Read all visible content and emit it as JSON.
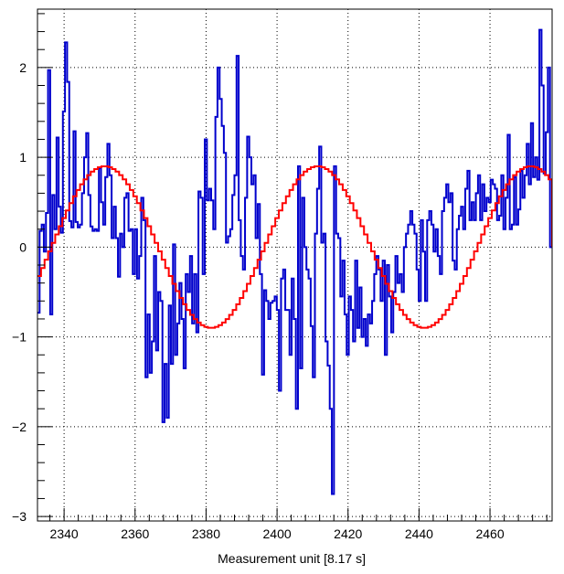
{
  "chart_data": {
    "type": "line",
    "title": "",
    "xlabel": "Measurement unit [8.17 s]",
    "ylabel": "",
    "xlim": [
      2332.5,
      2477.5
    ],
    "ylim": [
      -3.05,
      2.65
    ],
    "grid": true,
    "x_ticks": [
      {
        "value": 2340,
        "label": "2340"
      },
      {
        "value": 2360,
        "label": "2360"
      },
      {
        "value": 2380,
        "label": "2380"
      },
      {
        "value": 2400,
        "label": "2400"
      },
      {
        "value": 2420,
        "label": "2420"
      },
      {
        "value": 2440,
        "label": "2440"
      },
      {
        "value": 2460,
        "label": "2460"
      }
    ],
    "y_ticks": [
      {
        "value": -3,
        "label": "−3"
      },
      {
        "value": -2,
        "label": "−2"
      },
      {
        "value": -1,
        "label": "−1"
      },
      {
        "value": 0,
        "label": "0"
      },
      {
        "value": 1,
        "label": "1"
      },
      {
        "value": 2,
        "label": "2"
      }
    ],
    "bin_start": 2332.5,
    "bin_width": 1,
    "series": [
      {
        "style": "step",
        "color": "#0000cc",
        "values": [
          -0.73,
          0.18,
          0.25,
          -0.05,
          0.38,
          1.97,
          -0.75,
          0.58,
          0.2,
          1.22,
          0.45,
          0.16,
          1.51,
          2.28,
          1.84,
          0.29,
          0.22,
          1.29,
          0.28,
          0.22,
          0.25,
          0.6,
          1.0,
          1.27,
          0.58,
          0.23,
          0.18,
          0.2,
          0.18,
          0.88,
          0.5,
          0.25,
          0.78,
          1.15,
          0.8,
          0.1,
          0.45,
          0.1,
          -0.33,
          0.15,
          0.0,
          0.55,
          0.6,
          0.18,
          0.2,
          -0.3,
          0.2,
          -0.35,
          -0.1,
          0.55,
          0.3,
          -1.45,
          -0.75,
          -1.4,
          -1.05,
          -0.1,
          -1.15,
          -0.5,
          -0.6,
          -1.95,
          -1.3,
          -1.9,
          -0.65,
          -1.3,
          0.03,
          -1.2,
          -0.85,
          -0.4,
          -0.8,
          -1.35,
          -0.3,
          -0.5,
          -0.1,
          -0.85,
          -0.3,
          -0.95,
          0.62,
          0.55,
          -0.3,
          1.2,
          0.52,
          0.65,
          0.52,
          0.2,
          1.45,
          2.0,
          1.65,
          1.35,
          1.05,
          0.05,
          0.12,
          0.2,
          0.58,
          0.8,
          2.13,
          0.3,
          -0.1,
          -0.25,
          0.55,
          1.23,
          1.0,
          0.7,
          0.8,
          0.1,
          0.48,
          -0.3,
          -1.42,
          -0.48,
          -0.6,
          -0.8,
          -0.62,
          -0.6,
          -0.55,
          -0.7,
          -1.6,
          -0.35,
          -0.25,
          -0.7,
          -0.7,
          -1.2,
          -0.35,
          -0.8,
          -1.8,
          0.9,
          -1.35,
          0.55,
          0.0,
          -0.25,
          -0.35,
          -0.88,
          -1.45,
          0.15,
          0.65,
          1.12,
          0.05,
          0.15,
          -1.05,
          -1.32,
          -1.8,
          -2.75,
          0.9,
          0.15,
          0.1,
          -0.55,
          -0.15,
          -0.75,
          -1.2,
          -0.55,
          -0.7,
          -1.05,
          -0.15,
          -0.9,
          -0.45,
          -1.0,
          -0.8,
          -1.1,
          -0.75,
          -0.85,
          -0.6,
          -0.3,
          -0.1,
          -0.25,
          -0.6,
          -0.15,
          -1.2,
          -0.2,
          -0.55,
          -0.95,
          -0.5,
          -0.1,
          -0.4,
          -0.3,
          -0.5,
          0.0,
          0.15,
          0.25,
          0.4,
          0.25,
          0.15,
          -0.25,
          -0.6,
          0.3,
          -0.05,
          -0.6,
          0.3,
          0.4,
          0.25,
          -0.05,
          0.2,
          -0.1,
          -0.3,
          0.4,
          0.55,
          0.7,
          0.5,
          0.6,
          -0.15,
          -0.25,
          0.2,
          0.35,
          0.45,
          0.2,
          0.65,
          0.85,
          0.3,
          0.5,
          0.3,
          0.6,
          0.8,
          0.3,
          0.7,
          0.4,
          0.55,
          0.5,
          0.75,
          0.7,
          0.65,
          0.3,
          0.35,
          0.8,
          0.2,
          0.55,
          1.25,
          0.2,
          0.25,
          0.78,
          0.25,
          0.42,
          0.85,
          0.55,
          0.8,
          1.15,
          0.7,
          1.38,
          0.78,
          1.0,
          0.75,
          2.42,
          1.8,
          0.82,
          1.28,
          2.0,
          0.0
        ]
      },
      {
        "style": "step-function",
        "color": "#ff0000",
        "function": "sine",
        "amplitude": 0.9,
        "period": 60,
        "phase_x": 2336.5,
        "offset": 0
      }
    ]
  }
}
